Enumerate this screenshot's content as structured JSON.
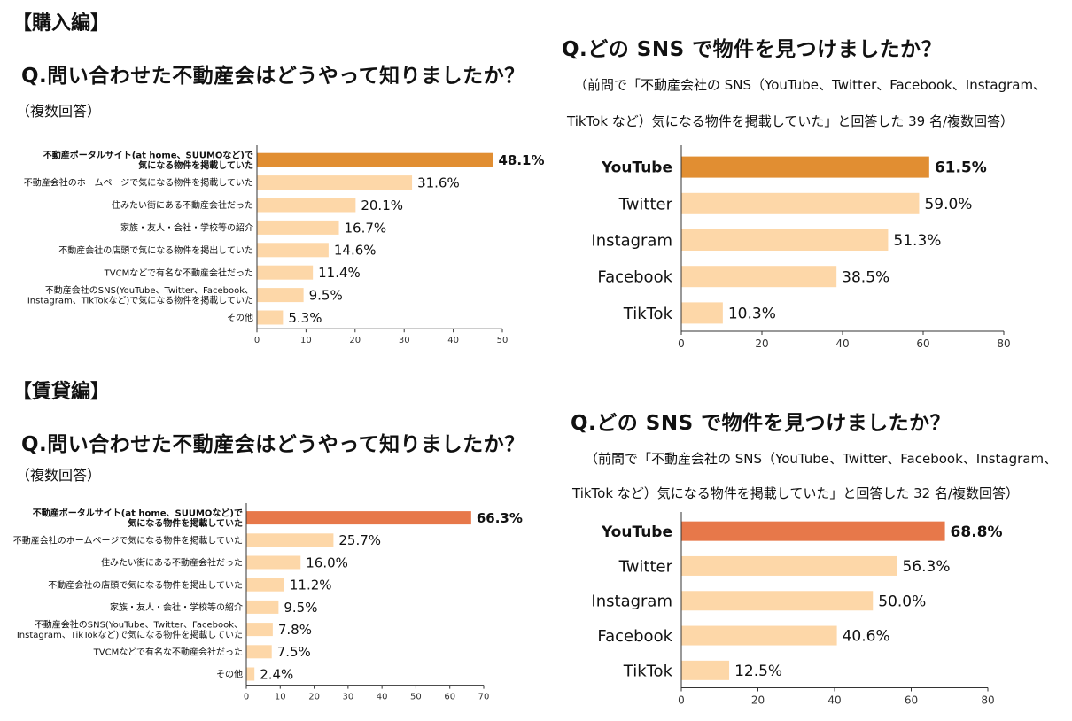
{
  "sections": {
    "purchase": "【購入編】",
    "rental": "【賃貸編】"
  },
  "purchase_left": {
    "question": "Q.問い合わせた不動産会はどうやって知りましたか？",
    "note": "（複数回答）"
  },
  "purchase_right": {
    "question": "Q.どの SNS で物件を見つけましたか？",
    "note_line1": "（前問で「不動産会社の SNS（YouTube、Twitter、Facebook、Instagram、",
    "note_line2": "TikTok など）気になる物件を掲載していた」と回答した 39 名/複数回答）"
  },
  "rental_left": {
    "question": "Q.問い合わせた不動産会はどうやって知りましたか？",
    "note": "（複数回答）"
  },
  "rental_right": {
    "question": "Q.どの SNS で物件を見つけましたか？",
    "note_line1": "（前問で「不動産会社の SNS（YouTube、Twitter、Facebook、Instagram、",
    "note_line2": "TikTok など）気になる物件を掲載していた」と回答した 32 名/複数回答）"
  },
  "colors": {
    "bar": "#FDD7A8",
    "highlight_purchase": "#E18E32",
    "highlight_rental": "#E7784A",
    "axis": "#333333"
  },
  "chart_data": [
    {
      "id": "purchase_source",
      "type": "bar",
      "orientation": "horizontal",
      "categories": [
        [
          "不動産ポータルサイト(at home、SUUMOなど)で",
          "気になる物件を掲載していた"
        ],
        [
          "不動産会社のホームページで気になる物件を掲載していた"
        ],
        [
          "住みたい街にある不動産会社だった"
        ],
        [
          "家族・友人・会社・学校等の紹介"
        ],
        [
          "不動産会社の店頭で気になる物件を掲出していた"
        ],
        [
          "TVCMなどで有名な不動産会社だった"
        ],
        [
          "不動産会社のSNS(YouTube、Twitter、Facebook、",
          "Instagram、TikTokなど)で気になる物件を掲載していた"
        ],
        [
          "その他"
        ]
      ],
      "values": [
        48.1,
        31.6,
        20.1,
        16.7,
        14.6,
        11.4,
        9.5,
        5.3
      ],
      "labels": [
        "48.1%",
        "31.6%",
        "20.1%",
        "16.7%",
        "14.6%",
        "11.4%",
        "9.5%",
        "5.3%"
      ],
      "xlim": [
        0,
        50
      ],
      "ticks": [
        "0",
        "10",
        "20",
        "30",
        "40",
        "50"
      ],
      "highlight_index": 0
    },
    {
      "id": "purchase_sns",
      "type": "bar",
      "orientation": "horizontal",
      "categories": [
        [
          "YouTube"
        ],
        [
          "Twitter"
        ],
        [
          "Instagram"
        ],
        [
          "Facebook"
        ],
        [
          "TikTok"
        ]
      ],
      "values": [
        61.5,
        59.0,
        51.3,
        38.5,
        10.3
      ],
      "labels": [
        "61.5%",
        "59.0%",
        "51.3%",
        "38.5%",
        "10.3%"
      ],
      "xlim": [
        0,
        80
      ],
      "ticks": [
        "0",
        "20",
        "40",
        "60",
        "80"
      ],
      "highlight_index": 0
    },
    {
      "id": "rental_source",
      "type": "bar",
      "orientation": "horizontal",
      "categories": [
        [
          "不動産ポータルサイト(at home、SUUMOなど)で",
          "気になる物件を掲載していた"
        ],
        [
          "不動産会社のホームページで気になる物件を掲載していた"
        ],
        [
          "住みたい街にある不動産会社だった"
        ],
        [
          "不動産会社の店頭で気になる物件を掲出していた"
        ],
        [
          "家族・友人・会社・学校等の紹介"
        ],
        [
          "不動産会社のSNS(YouTube、Twitter、Facebook、",
          "Instagram、TikTokなど)で気になる物件を掲載していた"
        ],
        [
          "TVCMなどで有名な不動産会社だった"
        ],
        [
          "その他"
        ]
      ],
      "values": [
        66.3,
        25.7,
        16.0,
        11.2,
        9.5,
        7.8,
        7.5,
        2.4
      ],
      "labels": [
        "66.3%",
        "25.7%",
        "16.0%",
        "11.2%",
        "9.5%",
        "7.8%",
        "7.5%",
        "2.4%"
      ],
      "xlim": [
        0,
        70
      ],
      "ticks": [
        "0",
        "10",
        "20",
        "30",
        "40",
        "50",
        "60",
        "70"
      ],
      "highlight_index": 0
    },
    {
      "id": "rental_sns",
      "type": "bar",
      "orientation": "horizontal",
      "categories": [
        [
          "YouTube"
        ],
        [
          "Twitter"
        ],
        [
          "Instagram"
        ],
        [
          "Facebook"
        ],
        [
          "TikTok"
        ]
      ],
      "values": [
        68.8,
        56.3,
        50.0,
        40.6,
        12.5
      ],
      "labels": [
        "68.8%",
        "56.3%",
        "50.0%",
        "40.6%",
        "12.5%"
      ],
      "xlim": [
        0,
        80
      ],
      "ticks": [
        "0",
        "20",
        "40",
        "60",
        "80"
      ],
      "highlight_index": 0
    }
  ]
}
